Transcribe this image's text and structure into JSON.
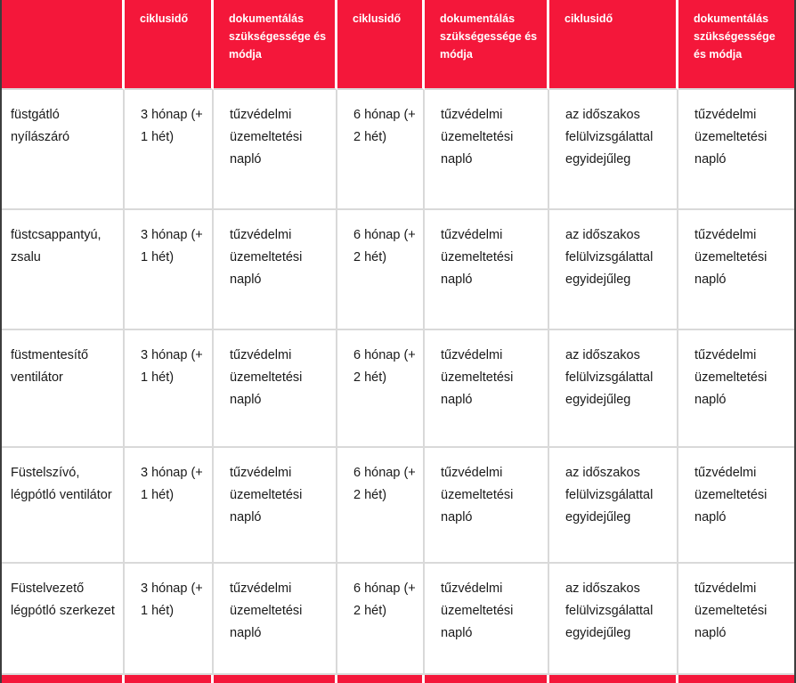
{
  "colors": {
    "header_red": "#F4173A",
    "body_text": "#1a1a1a",
    "grid_line": "#d9d9d9",
    "outer_edge": "#3d3d3d"
  },
  "table": {
    "corner_label": "",
    "column_headers": [
      "ciklusidő",
      "dokumentálás szükségessége és módja",
      "ciklusidő",
      "dokumentálás szükségessége és módja",
      "ciklusidő",
      "dokumentálás szükségessége és módja"
    ],
    "rows": [
      {
        "label": "füstgátló nyílászáró",
        "cells": [
          "3 hónap (+ 1 hét)",
          "tűzvédelmi üzemeltetési napló",
          "6 hónap (+ 2 hét)",
          "tűzvédelmi üzemeltetési napló",
          "az időszakos felülvizsgálattal egyidejűleg",
          "tűzvédelmi üzemeltetési napló"
        ]
      },
      {
        "label": "füstcsappantyú, zsalu",
        "cells": [
          "3 hónap (+ 1 hét)",
          "tűzvédelmi üzemeltetési napló",
          "6 hónap (+ 2 hét)",
          "tűzvédelmi üzemeltetési napló",
          "az időszakos felülvizsgálattal egyidejűleg",
          "tűzvédelmi üzemeltetési napló"
        ]
      },
      {
        "label": "füstmentesítő ventilátor",
        "cells": [
          "3 hónap (+ 1 hét)",
          "tűzvédelmi üzemeltetési napló",
          "6 hónap (+ 2 hét)",
          "tűzvédelmi üzemeltetési napló",
          "az időszakos felülvizsgálattal egyidejűleg",
          "tűzvédelmi üzemeltetési napló"
        ]
      },
      {
        "label": "Füstelszívó, légpótló ventilátor",
        "cells": [
          "3 hónap (+ 1 hét)",
          "tűzvédelmi üzemeltetési napló",
          "6 hónap (+ 2 hét)",
          "tűzvédelmi üzemeltetési napló",
          "az időszakos felülvizsgálattal egyidejűleg",
          "tűzvédelmi üzemeltetési napló"
        ]
      },
      {
        "label": "Füstelvezető légpótló szerkezet",
        "cells": [
          "3 hónap (+ 1 hét)",
          "tűzvédelmi üzemeltetési napló",
          "6 hónap (+ 2 hét)",
          "tűzvédelmi üzemeltetési napló",
          "az időszakos felülvizsgálattal egyidejűleg",
          "tűzvédelmi üzemeltetési napló"
        ]
      }
    ]
  }
}
